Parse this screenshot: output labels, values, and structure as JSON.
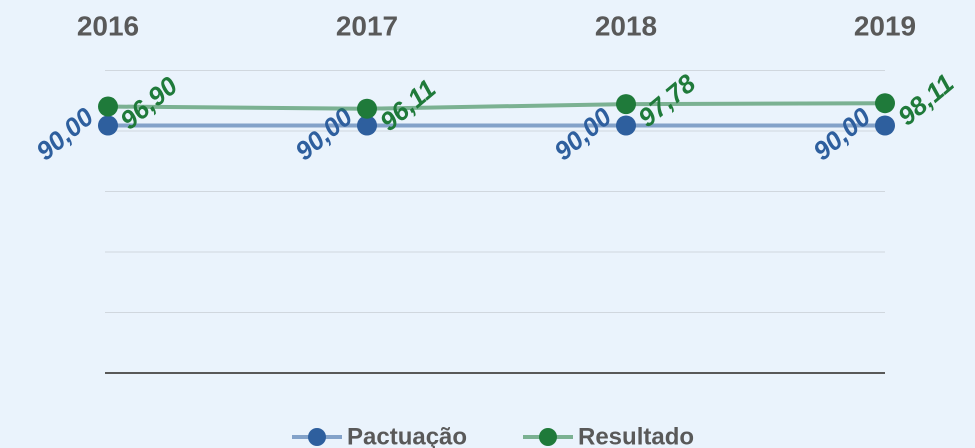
{
  "chart_data": {
    "type": "line",
    "categories": [
      "2016",
      "2017",
      "2018",
      "2019"
    ],
    "series": [
      {
        "name": "Pactuação",
        "color": "#2e5f9e",
        "values": [
          90,
          90,
          90,
          90
        ],
        "value_labels": [
          "90,00",
          "90,00",
          "90,00",
          "90,00"
        ]
      },
      {
        "name": "Resultado",
        "color": "#1f7a3a",
        "values": [
          96.9,
          96.11,
          97.78,
          98.11
        ],
        "value_labels": [
          "96,90",
          "96,11",
          "97,78",
          "98,11"
        ]
      }
    ],
    "ylim": [
      0,
      110
    ],
    "yticks": [
      0,
      22,
      44,
      66,
      88,
      110
    ],
    "grid": true
  }
}
